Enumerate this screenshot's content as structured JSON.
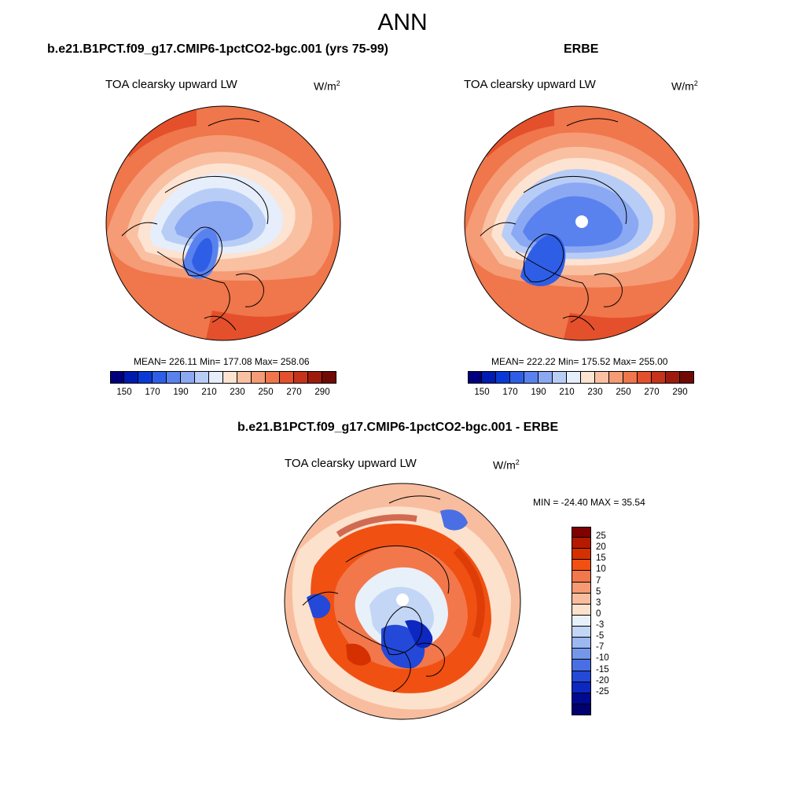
{
  "title": "ANN",
  "panels": [
    {
      "title": "b.e21.B1PCT.f09_g17.CMIP6-1pctCO2-bgc.001 (yrs 75-99)",
      "variable": "TOA clearsky upward LW",
      "units_base": "W/m",
      "units_exp": "2",
      "stats": "MEAN= 226.11  Min= 177.08  Max= 258.06"
    },
    {
      "title": "ERBE",
      "variable": "TOA clearsky upward LW",
      "units_base": "W/m",
      "units_exp": "2",
      "stats": "MEAN= 222.22  Min= 175.52  Max= 255.00"
    },
    {
      "title": "b.e21.B1PCT.f09_g17.CMIP6-1pctCO2-bgc.001 - ERBE",
      "variable": "TOA clearsky upward LW",
      "units_base": "W/m",
      "units_exp": "2",
      "stats": "MIN = -24.40 MAX =  35.54"
    }
  ],
  "colorbar_main": {
    "colors": [
      "#00007f",
      "#001bb0",
      "#0a3ad6",
      "#2f5ee6",
      "#5a82ee",
      "#8ba8f3",
      "#b8cdf6",
      "#e5eefa",
      "#fde3d2",
      "#f9c0a2",
      "#f59b75",
      "#f0764b",
      "#e4502b",
      "#c4331a",
      "#9d1b0c",
      "#700a05"
    ],
    "tick_labels": [
      "150",
      "170",
      "190",
      "210",
      "230",
      "250",
      "270",
      "290"
    ]
  },
  "colorbar_diff": {
    "colors": [
      "#800000",
      "#b51a00",
      "#d43000",
      "#f05012",
      "#f2774b",
      "#f59a73",
      "#f8bd9e",
      "#fce1cc",
      "#e8f0fa",
      "#c3d6f5",
      "#9bb8f0",
      "#7497ea",
      "#4a6fe4",
      "#2448d8",
      "#0c28c0",
      "#000a90",
      "#000070"
    ],
    "tick_labels": [
      "25",
      "20",
      "15",
      "10",
      "7",
      "5",
      "3",
      "0",
      "-3",
      "-5",
      "-7",
      "-10",
      "-15",
      "-20",
      "-25"
    ]
  }
}
